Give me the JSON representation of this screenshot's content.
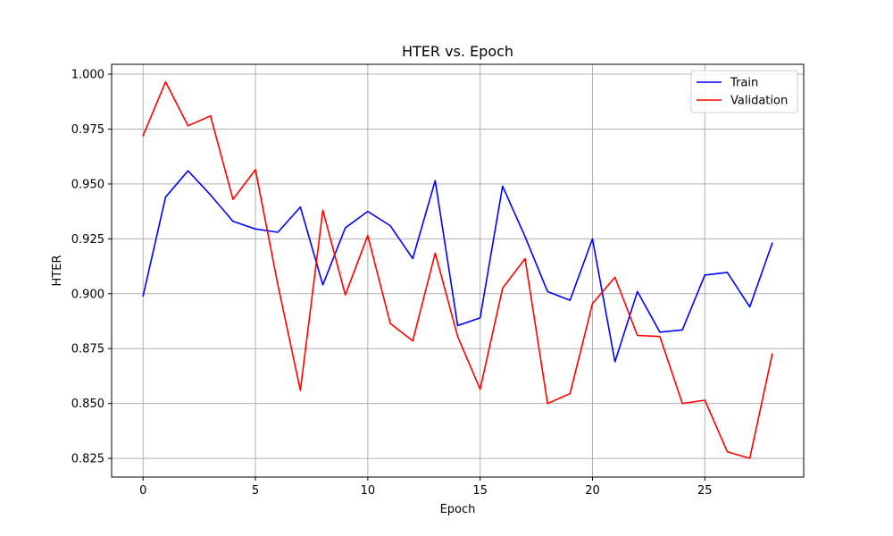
{
  "chart_data": {
    "type": "line",
    "title": "HTER vs. Epoch",
    "xlabel": "Epoch",
    "ylabel": "HTER",
    "xlim": [
      -1.4,
      29.4
    ],
    "ylim": [
      0.8165,
      1.0045
    ],
    "xticks": [
      0,
      5,
      10,
      15,
      20,
      25
    ],
    "yticks": [
      0.825,
      0.85,
      0.875,
      0.9,
      0.925,
      0.95,
      0.975,
      1.0
    ],
    "ytick_labels": [
      "0.825",
      "0.850",
      "0.875",
      "0.900",
      "0.925",
      "0.950",
      "0.975",
      "1.000"
    ],
    "grid": true,
    "legend_position": "top-right",
    "x": [
      0,
      1,
      2,
      3,
      4,
      5,
      6,
      7,
      8,
      9,
      10,
      11,
      12,
      13,
      14,
      15,
      16,
      17,
      18,
      19,
      20,
      21,
      22,
      23,
      24,
      25,
      26,
      27,
      28
    ],
    "series": [
      {
        "name": "Train",
        "color": "#0000ff",
        "values": [
          0.899,
          0.944,
          0.956,
          0.945,
          0.933,
          0.9295,
          0.928,
          0.9395,
          0.904,
          0.93,
          0.9375,
          0.931,
          0.916,
          0.9515,
          0.8855,
          0.889,
          0.949,
          0.926,
          0.901,
          0.897,
          0.925,
          0.869,
          0.901,
          0.8825,
          0.8835,
          0.9085,
          0.9097,
          0.894,
          0.923
        ]
      },
      {
        "name": "Validation",
        "color": "#ff0000",
        "values": [
          0.972,
          0.9965,
          0.9765,
          0.981,
          0.943,
          0.9565,
          0.904,
          0.856,
          0.938,
          0.8995,
          0.9265,
          0.8865,
          0.8785,
          0.9185,
          0.8805,
          0.8565,
          0.9025,
          0.916,
          0.85,
          0.8545,
          0.8955,
          0.9075,
          0.881,
          0.8805,
          0.85,
          0.8515,
          0.828,
          0.825,
          0.8725
        ]
      }
    ]
  }
}
